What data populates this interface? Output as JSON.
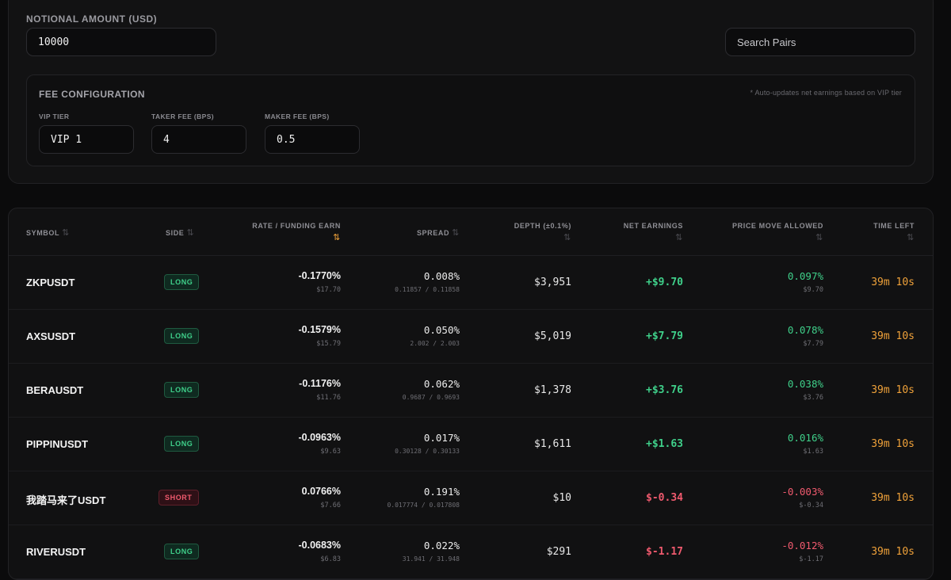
{
  "config": {
    "notional_label": "NOTIONAL AMOUNT (USD)",
    "notional_value": "10000",
    "search_placeholder": "Search Pairs",
    "fee": {
      "title": "FEE CONFIGURATION",
      "note": "* Auto-updates net earnings based on VIP tier",
      "vip_label": "VIP TIER",
      "vip_value": "VIP 1",
      "taker_label": "TAKER FEE (BPS)",
      "taker_value": "4",
      "maker_label": "MAKER FEE (BPS)",
      "maker_value": "0.5"
    }
  },
  "table": {
    "headers": {
      "symbol": "SYMBOL",
      "side": "SIDE",
      "rate": "RATE / FUNDING EARN",
      "spread": "SPREAD",
      "depth": "DEPTH (±0.1%)",
      "net": "NET EARNINGS",
      "move": "PRICE MOVE ALLOWED",
      "time": "TIME LEFT"
    },
    "sort_icon": "⇅",
    "rows": [
      {
        "symbol": "ZKPUSDT",
        "side": "LONG",
        "rate": "-0.1770%",
        "earn": "$17.70",
        "spread": "0.008%",
        "bidask": "0.11857 / 0.11858",
        "depth": "$3,951",
        "net": "+$9.70",
        "move": "0.097%",
        "move_sub": "$9.70",
        "time": "39m 10s"
      },
      {
        "symbol": "AXSUSDT",
        "side": "LONG",
        "rate": "-0.1579%",
        "earn": "$15.79",
        "spread": "0.050%",
        "bidask": "2.002 / 2.003",
        "depth": "$5,019",
        "net": "+$7.79",
        "move": "0.078%",
        "move_sub": "$7.79",
        "time": "39m 10s"
      },
      {
        "symbol": "BERAUSDT",
        "side": "LONG",
        "rate": "-0.1176%",
        "earn": "$11.76",
        "spread": "0.062%",
        "bidask": "0.9687 / 0.9693",
        "depth": "$1,378",
        "net": "+$3.76",
        "move": "0.038%",
        "move_sub": "$3.76",
        "time": "39m 10s"
      },
      {
        "symbol": "PIPPINUSDT",
        "side": "LONG",
        "rate": "-0.0963%",
        "earn": "$9.63",
        "spread": "0.017%",
        "bidask": "0.30128 / 0.30133",
        "depth": "$1,611",
        "net": "+$1.63",
        "move": "0.016%",
        "move_sub": "$1.63",
        "time": "39m 10s"
      },
      {
        "symbol": "我踏马来了USDT",
        "side": "SHORT",
        "rate": "0.0766%",
        "earn": "$7.66",
        "spread": "0.191%",
        "bidask": "0.017774 / 0.017808",
        "depth": "$10",
        "net": "$-0.34",
        "move": "-0.003%",
        "move_sub": "$-0.34",
        "time": "39m 10s"
      },
      {
        "symbol": "RIVERUSDT",
        "side": "LONG",
        "rate": "-0.0683%",
        "earn": "$6.83",
        "spread": "0.022%",
        "bidask": "31.941 / 31.948",
        "depth": "$291",
        "net": "$-1.17",
        "move": "-0.012%",
        "move_sub": "$-1.17",
        "time": "39m 10s"
      }
    ]
  }
}
